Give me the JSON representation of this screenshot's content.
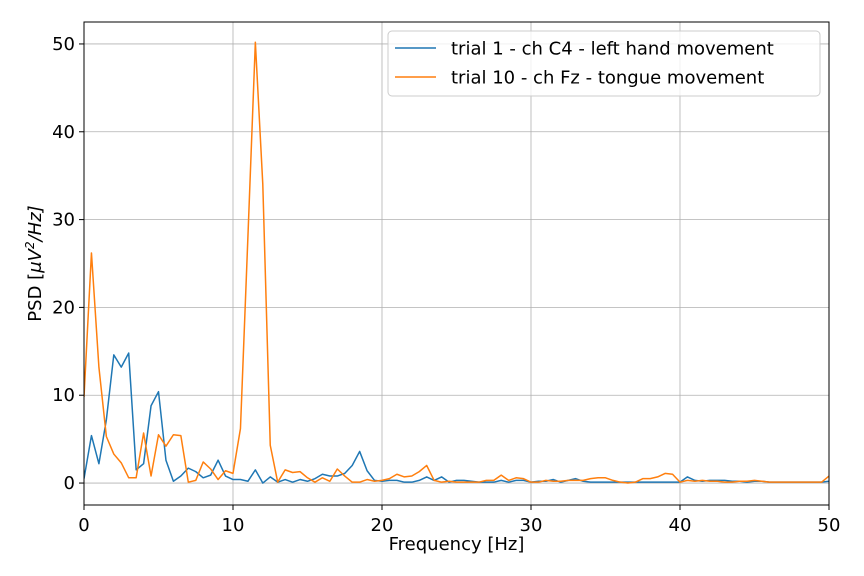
{
  "chart_data": {
    "type": "line",
    "xlabel": "Frequency [Hz]",
    "ylabel_prefix": "PSD [",
    "ylabel_mu": "μ",
    "ylabel_V": "V",
    "ylabel_exp": "2",
    "ylabel_suffix": "/Hz]",
    "xlim": [
      0,
      50
    ],
    "ylim": [
      -2.5,
      52.5
    ],
    "xticks": [
      0,
      10,
      20,
      30,
      40,
      50
    ],
    "yticks": [
      0,
      10,
      20,
      30,
      40,
      50
    ],
    "xtick_labels": [
      "0",
      "10",
      "20",
      "30",
      "40",
      "50"
    ],
    "ytick_labels": [
      "0",
      "10",
      "20",
      "30",
      "40",
      "50"
    ],
    "grid": true,
    "legend_position": "top-right",
    "x": [
      0,
      0.5,
      1,
      1.5,
      2,
      2.5,
      3,
      3.5,
      4,
      4.5,
      5,
      5.5,
      6,
      6.5,
      7,
      7.5,
      8,
      8.5,
      9,
      9.5,
      10,
      10.5,
      11,
      11.5,
      12,
      12.5,
      13,
      13.5,
      14,
      14.5,
      15,
      15.5,
      16,
      16.5,
      17,
      17.5,
      18,
      18.5,
      19,
      19.5,
      20,
      20.5,
      21,
      21.5,
      22,
      22.5,
      23,
      23.5,
      24,
      24.5,
      25,
      25.5,
      26,
      26.5,
      27,
      27.5,
      28,
      28.5,
      29,
      29.5,
      30,
      30.5,
      31,
      31.5,
      32,
      32.5,
      33,
      33.5,
      34,
      34.5,
      35,
      35.5,
      36,
      36.5,
      37,
      37.5,
      38,
      38.5,
      39,
      39.5,
      40,
      40.5,
      41,
      41.5,
      42,
      42.5,
      43,
      43.5,
      44,
      44.5,
      45,
      45.5,
      46,
      46.5,
      47,
      47.5,
      48,
      48.5,
      49,
      49.5,
      50
    ],
    "series": [
      {
        "name": "trial 1 - ch C4 - left hand movement",
        "color": "#1f77b4",
        "values": [
          0.5,
          5.4,
          2.2,
          7.2,
          14.6,
          13.2,
          14.8,
          1.5,
          2.2,
          8.8,
          10.4,
          2.6,
          0.2,
          0.8,
          1.7,
          1.3,
          0.6,
          0.9,
          2.6,
          0.8,
          0.4,
          0.4,
          0.2,
          1.5,
          0.0,
          0.7,
          0.1,
          0.4,
          0.1,
          0.4,
          0.2,
          0.5,
          1.0,
          0.8,
          0.8,
          1.1,
          2.0,
          3.6,
          1.4,
          0.3,
          0.2,
          0.3,
          0.3,
          0.1,
          0.1,
          0.3,
          0.7,
          0.3,
          0.7,
          0.1,
          0.3,
          0.3,
          0.2,
          0.1,
          0.1,
          0.1,
          0.3,
          0.1,
          0.3,
          0.3,
          0.1,
          0.2,
          0.2,
          0.4,
          0.1,
          0.3,
          0.5,
          0.2,
          0.1,
          0.1,
          0.1,
          0.1,
          0.1,
          0.1,
          0.1,
          0.1,
          0.1,
          0.1,
          0.1,
          0.1,
          0.1,
          0.7,
          0.3,
          0.2,
          0.3,
          0.3,
          0.3,
          0.2,
          0.2,
          0.1,
          0.2,
          0.2,
          0.1,
          0.1,
          0.1,
          0.1,
          0.1,
          0.1,
          0.1,
          0.1,
          0.2
        ]
      },
      {
        "name": "trial 10 - ch Fz - tongue movement",
        "color": "#ff7f0e",
        "values": [
          9.8,
          26.2,
          13.2,
          5.3,
          3.3,
          2.3,
          0.6,
          0.6,
          5.7,
          0.8,
          5.5,
          4.2,
          5.5,
          5.4,
          0.1,
          0.3,
          2.4,
          1.6,
          0.4,
          1.4,
          1.1,
          6.2,
          28.0,
          50.2,
          34.0,
          4.3,
          0.1,
          1.5,
          1.2,
          1.3,
          0.6,
          0.1,
          0.6,
          0.2,
          1.6,
          0.8,
          0.1,
          0.1,
          0.4,
          0.2,
          0.3,
          0.5,
          1.0,
          0.7,
          0.8,
          1.3,
          2.0,
          0.3,
          0.1,
          0.2,
          0.1,
          0.1,
          0.1,
          0.1,
          0.3,
          0.3,
          0.9,
          0.3,
          0.6,
          0.5,
          0.1,
          0.1,
          0.3,
          0.2,
          0.2,
          0.3,
          0.3,
          0.3,
          0.5,
          0.6,
          0.6,
          0.3,
          0.1,
          0.0,
          0.1,
          0.5,
          0.5,
          0.7,
          1.1,
          1.0,
          0.1,
          0.3,
          0.2,
          0.3,
          0.2,
          0.2,
          0.1,
          0.1,
          0.2,
          0.2,
          0.3,
          0.2,
          0.1,
          0.1,
          0.1,
          0.1,
          0.1,
          0.1,
          0.1,
          0.1,
          0.8
        ]
      }
    ]
  }
}
